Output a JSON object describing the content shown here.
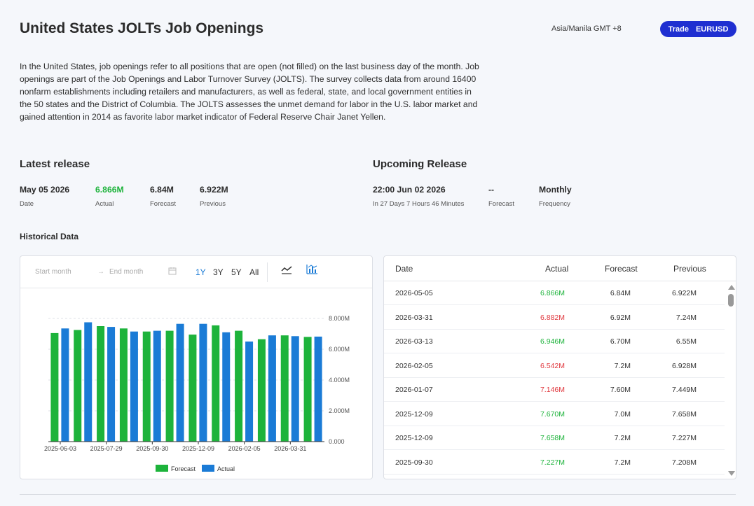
{
  "page": {
    "title": "United States JOLTs Job Openings",
    "timezone": "Asia/Manila GMT +8",
    "trade_button": {
      "label": "Trade",
      "symbol": "EURUSD"
    },
    "description": "In the United States, job openings refer to all positions that are open (not filled) on the last business day of the month. Job openings are part of the Job Openings and Labor Turnover Survey (JOLTS). The survey collects data from around 16400 nonfarm establishments including retailers and manufacturers, as well as federal, state, and local government entities in the 50 states and the District of Columbia. The JOLTS assesses the unmet demand for labor in the U.S. labor market and gained attention in 2014 as favorite labor market indicator of Federal Reserve Chair Janet Yellen."
  },
  "latest": {
    "heading": "Latest release",
    "date": {
      "value": "May 05 2026",
      "label": "Date"
    },
    "actual": {
      "value": "6.866M",
      "label": "Actual"
    },
    "forecast": {
      "value": "6.84M",
      "label": "Forecast"
    },
    "previous": {
      "value": "6.922M",
      "label": "Previous"
    }
  },
  "upcoming": {
    "heading": "Upcoming Release",
    "time": {
      "value": "22:00 Jun 02 2026",
      "label": "In 27 Days 7 Hours 46 Minutes"
    },
    "forecast": {
      "value": "--",
      "label": "Forecast"
    },
    "frequency": {
      "value": "Monthly",
      "label": "Frequency"
    }
  },
  "historical": {
    "heading": "Historical Data",
    "toolbar": {
      "start_placeholder": "Start month",
      "end_placeholder": "End month",
      "ranges": [
        "1Y",
        "3Y",
        "5Y",
        "All"
      ],
      "active_range": "1Y",
      "line_icon": "line-chart-icon",
      "bar_icon": "bar-chart-icon"
    },
    "table": {
      "headers": [
        "Date",
        "Actual",
        "Forecast",
        "Previous"
      ],
      "rows": [
        {
          "date": "2026-05-05",
          "actual": "6.866M",
          "forecast": "6.84M",
          "previous": "6.922M",
          "trend": "pos"
        },
        {
          "date": "2026-03-31",
          "actual": "6.882M",
          "forecast": "6.92M",
          "previous": "7.24M",
          "trend": "neg"
        },
        {
          "date": "2026-03-13",
          "actual": "6.946M",
          "forecast": "6.70M",
          "previous": "6.55M",
          "trend": "pos"
        },
        {
          "date": "2026-02-05",
          "actual": "6.542M",
          "forecast": "7.2M",
          "previous": "6.928M",
          "trend": "neg"
        },
        {
          "date": "2026-01-07",
          "actual": "7.146M",
          "forecast": "7.60M",
          "previous": "7.449M",
          "trend": "neg"
        },
        {
          "date": "2025-12-09",
          "actual": "7.670M",
          "forecast": "7.0M",
          "previous": "7.658M",
          "trend": "pos"
        },
        {
          "date": "2025-12-09",
          "actual": "7.658M",
          "forecast": "7.2M",
          "previous": "7.227M",
          "trend": "pos"
        },
        {
          "date": "2025-09-30",
          "actual": "7.227M",
          "forecast": "7.2M",
          "previous": "7.208M",
          "trend": "pos"
        }
      ]
    }
  },
  "colors": {
    "forecast": "#1db33b",
    "actual": "#1a7bd6",
    "positive": "#1db33b",
    "negative": "#e0383e",
    "trade": "#1f2fd1"
  },
  "chart_data": {
    "type": "bar",
    "categories": [
      "c1",
      "c2",
      "c3",
      "c4",
      "c5",
      "c6",
      "c7",
      "c8",
      "c9",
      "c10",
      "c11",
      "c12"
    ],
    "tick_labels": [
      "2025-06-03",
      "2025-07-29",
      "2025-09-30",
      "2025-12-09",
      "2026-02-05",
      "2026-03-31"
    ],
    "series": [
      {
        "name": "Forecast",
        "values": [
          7.05,
          7.25,
          7.5,
          7.35,
          7.15,
          7.2,
          6.95,
          7.55,
          7.2,
          6.65,
          6.9,
          6.8
        ]
      },
      {
        "name": "Actual",
        "values": [
          7.35,
          7.75,
          7.45,
          7.15,
          7.2,
          7.65,
          7.65,
          7.1,
          6.5,
          6.9,
          6.85,
          6.82
        ]
      }
    ],
    "y_ticks": [
      "0.000",
      "2.000M",
      "4.000M",
      "6.000M",
      "8.000M"
    ],
    "ylim": [
      0,
      8
    ],
    "legend": [
      "Forecast",
      "Actual"
    ],
    "legend_position": "bottom",
    "grid": true
  }
}
